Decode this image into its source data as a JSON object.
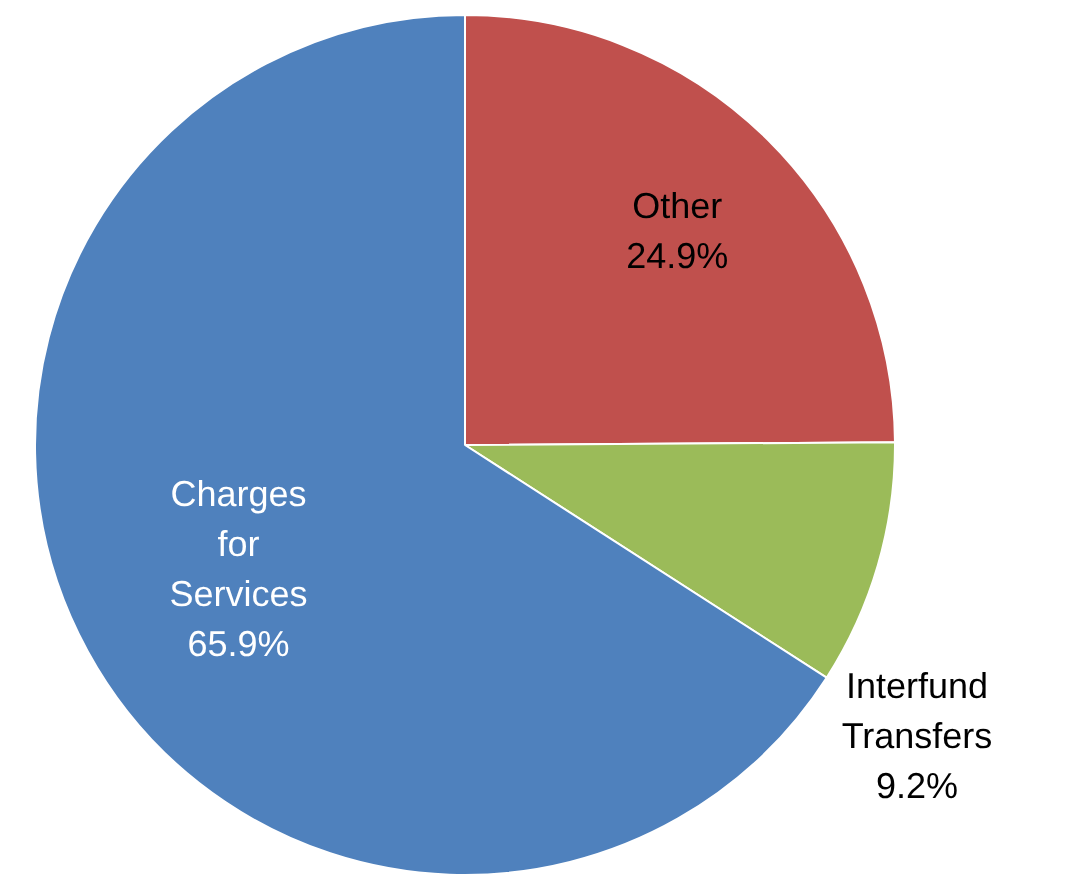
{
  "chart_data": {
    "type": "pie",
    "categories": [
      "Other",
      "Interfund Transfers",
      "Charges for Services"
    ],
    "values": [
      24.9,
      9.2,
      65.9
    ],
    "colors": [
      "#c0504d",
      "#9bbb59",
      "#4f81bd"
    ],
    "value_labels": [
      "24.9%",
      "9.2%",
      "65.9%"
    ]
  }
}
